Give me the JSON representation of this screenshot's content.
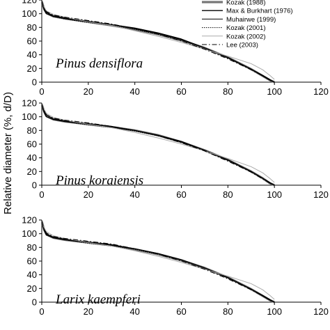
{
  "chart_data": {
    "type": "line",
    "ylabel": "Relative diameter (%, d/D)",
    "xticks": [
      0,
      20,
      40,
      60,
      80,
      100,
      120
    ],
    "yticks": [
      0,
      20,
      40,
      60,
      80,
      100,
      120
    ],
    "xlim": [
      0,
      120
    ],
    "ylim": [
      0,
      120
    ],
    "legend": {
      "placement": "top-right",
      "entries": [
        {
          "name": "Kozak (1988)",
          "color": "#777777",
          "width": 3.2,
          "dash": ""
        },
        {
          "name": "Max & Burkhart (1976)",
          "color": "#000000",
          "width": 1.3,
          "dash": ""
        },
        {
          "name": "Muhairwe (1999)",
          "color": "#000000",
          "width": 1.0,
          "dash": ""
        },
        {
          "name": "Kozak (2001)",
          "color": "#000000",
          "width": 1.0,
          "dash": "1.5,1.5"
        },
        {
          "name": "Kozak (2002)",
          "color": "#aaaaaa",
          "width": 1.0,
          "dash": ""
        },
        {
          "name": "Lee (2003)",
          "color": "#000000",
          "width": 1.0,
          "dash": "7,3,1.5,3"
        }
      ]
    },
    "panels": [
      {
        "species": "Pinus densiflora",
        "series": [
          {
            "x": [
              0,
              1,
              2,
              5,
              10,
              20,
              30,
              40,
              50,
              60,
              70,
              80,
              90,
              95,
              98,
              100
            ],
            "y": [
              118,
              107,
              101,
              96,
              93,
              88,
              83,
              77,
              70,
              61,
              50,
              36,
              19,
              9,
              3,
              0
            ]
          },
          {
            "x": [
              0,
              1,
              2,
              5,
              10,
              20,
              30,
              40,
              50,
              60,
              70,
              80,
              90,
              95,
              98,
              100
            ],
            "y": [
              118,
              106,
              100,
              96,
              93,
              88,
              84,
              79,
              72,
              63,
              50,
              36,
              19,
              9,
              3,
              0
            ]
          },
          {
            "x": [
              0,
              1,
              2,
              5,
              10,
              20,
              30,
              40,
              50,
              60,
              70,
              80,
              90,
              95,
              98,
              100
            ],
            "y": [
              118,
              108,
              102,
              97,
              94,
              89,
              84,
              78,
              71,
              62,
              50,
              36,
              19,
              10,
              4,
              0
            ]
          },
          {
            "x": [
              0,
              1,
              2,
              5,
              10,
              20,
              30,
              40,
              50,
              60,
              70,
              80,
              90,
              95,
              98,
              100
            ],
            "y": [
              119,
              107,
              101,
              96,
              92,
              87,
              83,
              77,
              70,
              61,
              50,
              35,
              19,
              10,
              4,
              0
            ]
          },
          {
            "x": [
              0,
              1,
              2,
              5,
              10,
              20,
              30,
              40,
              50,
              60,
              70,
              80,
              90,
              95,
              98,
              100
            ],
            "y": [
              118,
              110,
              104,
              99,
              95,
              88,
              83,
              75,
              67,
              58,
              48,
              38,
              27,
              18,
              10,
              4
            ]
          },
          {
            "x": [
              0,
              1,
              2,
              5,
              10,
              20,
              30,
              40,
              50,
              60,
              70,
              80,
              90,
              95,
              98,
              100
            ],
            "y": [
              118,
              108,
              103,
              98,
              95,
              90,
              85,
              78,
              70,
              60,
              48,
              34,
              18,
              9,
              3,
              0
            ]
          }
        ]
      },
      {
        "species": "Pinus koraiensis",
        "series": [
          {
            "x": [
              0,
              1,
              2,
              5,
              10,
              20,
              30,
              40,
              50,
              60,
              70,
              80,
              90,
              95,
              98,
              100
            ],
            "y": [
              118,
              108,
              101,
              96,
              93,
              89,
              85,
              80,
              73,
              63,
              51,
              37,
              20,
              10,
              3,
              0
            ]
          },
          {
            "x": [
              0,
              1,
              2,
              5,
              10,
              20,
              30,
              40,
              50,
              60,
              70,
              80,
              90,
              95,
              98,
              100
            ],
            "y": [
              118,
              106,
              100,
              96,
              93,
              89,
              85,
              80,
              73,
              64,
              51,
              37,
              20,
              10,
              3,
              0
            ]
          },
          {
            "x": [
              0,
              1,
              2,
              5,
              10,
              20,
              30,
              40,
              50,
              60,
              70,
              80,
              90,
              95,
              98,
              100
            ],
            "y": [
              118,
              109,
              103,
              97,
              94,
              90,
              86,
              80,
              73,
              63,
              51,
              37,
              20,
              10,
              4,
              0
            ]
          },
          {
            "x": [
              0,
              1,
              2,
              5,
              10,
              20,
              30,
              40,
              50,
              60,
              70,
              80,
              90,
              95,
              98,
              100
            ],
            "y": [
              119,
              107,
              101,
              96,
              93,
              88,
              84,
              79,
              72,
              63,
              51,
              36,
              20,
              10,
              4,
              0
            ]
          },
          {
            "x": [
              0,
              1,
              2,
              5,
              10,
              20,
              30,
              40,
              50,
              60,
              70,
              80,
              90,
              95,
              98,
              100
            ],
            "y": [
              118,
              111,
              105,
              99,
              95,
              89,
              84,
              77,
              69,
              60,
              50,
              39,
              27,
              18,
              10,
              4
            ]
          },
          {
            "x": [
              0,
              1,
              2,
              5,
              10,
              20,
              30,
              40,
              50,
              60,
              70,
              80,
              90,
              95,
              98,
              100
            ],
            "y": [
              118,
              109,
              103,
              98,
              95,
              91,
              86,
              80,
              72,
              62,
              50,
              35,
              19,
              9,
              3,
              0
            ]
          }
        ]
      },
      {
        "species": "Larix kaempferi",
        "series": [
          {
            "x": [
              0,
              1,
              2,
              5,
              10,
              20,
              30,
              40,
              50,
              60,
              70,
              80,
              90,
              95,
              98,
              100
            ],
            "y": [
              118,
              106,
              99,
              94,
              91,
              87,
              83,
              77,
              70,
              61,
              50,
              36,
              19,
              9,
              3,
              0
            ]
          },
          {
            "x": [
              0,
              1,
              2,
              5,
              10,
              20,
              30,
              40,
              50,
              60,
              70,
              80,
              90,
              95,
              98,
              100
            ],
            "y": [
              118,
              105,
              98,
              94,
              91,
              87,
              83,
              78,
              71,
              62,
              50,
              36,
              19,
              9,
              3,
              0
            ]
          },
          {
            "x": [
              0,
              1,
              2,
              5,
              10,
              20,
              30,
              40,
              50,
              60,
              70,
              80,
              90,
              95,
              98,
              100
            ],
            "y": [
              118,
              107,
              100,
              95,
              92,
              88,
              84,
              78,
              71,
              62,
              50,
              36,
              19,
              10,
              4,
              0
            ]
          },
          {
            "x": [
              0,
              1,
              2,
              5,
              10,
              20,
              30,
              40,
              50,
              60,
              70,
              80,
              90,
              95,
              98,
              100
            ],
            "y": [
              119,
              106,
              99,
              94,
              91,
              86,
              82,
              77,
              70,
              61,
              50,
              35,
              19,
              10,
              4,
              0
            ]
          },
          {
            "x": [
              0,
              1,
              2,
              5,
              10,
              20,
              30,
              40,
              50,
              60,
              70,
              80,
              90,
              95,
              98,
              100
            ],
            "y": [
              118,
              109,
              103,
              97,
              93,
              87,
              82,
              75,
              67,
              58,
              48,
              38,
              27,
              18,
              10,
              4
            ]
          },
          {
            "x": [
              0,
              1,
              2,
              5,
              10,
              20,
              30,
              40,
              50,
              60,
              70,
              80,
              90,
              95,
              98,
              100
            ],
            "y": [
              118,
              107,
              101,
              96,
              93,
              89,
              85,
              78,
              70,
              60,
              48,
              34,
              18,
              9,
              3,
              0
            ]
          }
        ]
      }
    ]
  }
}
